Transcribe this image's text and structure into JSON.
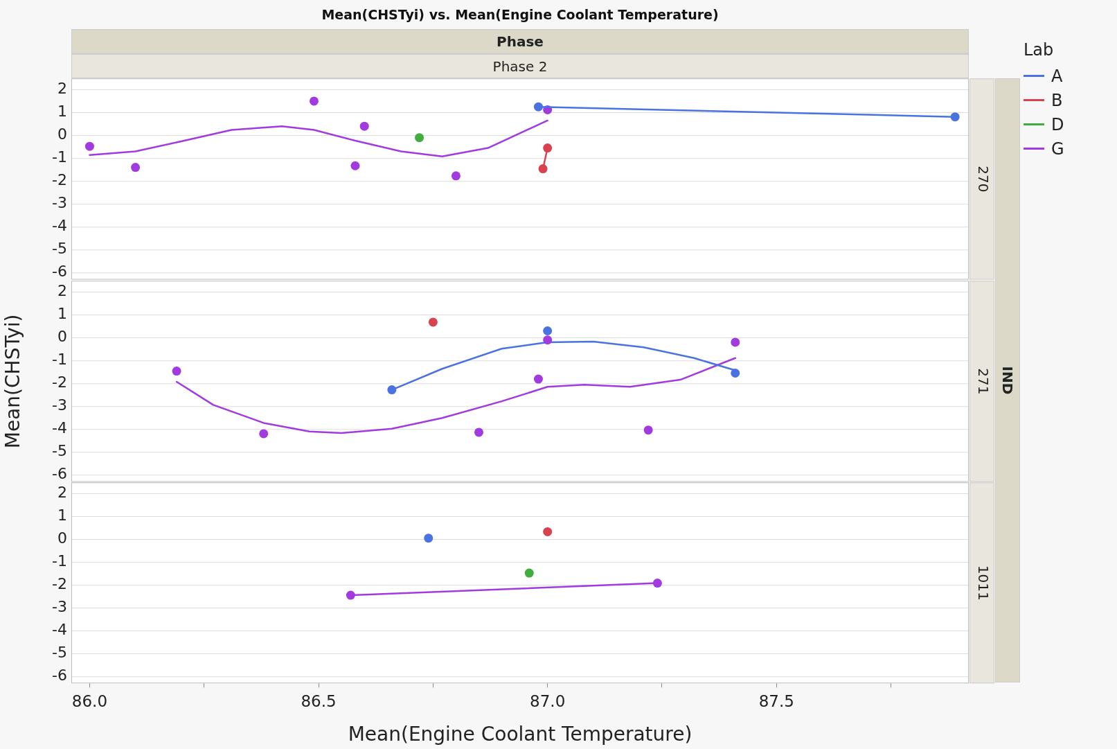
{
  "chart_data": [
    {
      "type": "scatter",
      "title": "Mean(CHSTyi) vs. Mean(Engine Coolant Temperature)",
      "subtitle": "270",
      "annotations": [
        "Phase",
        "Phase 2",
        "IND"
      ],
      "legend": "right",
      "legend_title": "Lab",
      "marker": "circle",
      "grid": "y",
      "tick_labels": "y",
      "xlim": [
        85.96,
        87.92
      ],
      "ylim": [
        -6.3,
        2.5
      ],
      "yticks": [
        -6,
        -5,
        -4,
        -3,
        -2,
        -1,
        0,
        1,
        2
      ],
      "series": [
        {
          "name": "A",
          "type": "line",
          "color": "#4a72e0",
          "x": [
            86.98,
            87.89
          ],
          "values": [
            1.26,
            0.82
          ]
        },
        {
          "name": "B",
          "type": "line",
          "color": "#d9434f",
          "x": [
            86.99,
            87.0
          ],
          "values": [
            -1.45,
            -0.54
          ]
        },
        {
          "name": "D",
          "type": "scatter",
          "color": "#3fae3f",
          "x": [
            86.72
          ],
          "values": [
            -0.09
          ]
        },
        {
          "name": "G",
          "type": "scatter",
          "color": "#a13be0",
          "x": [
            86.0,
            86.1,
            86.49,
            86.6,
            86.58,
            86.8,
            87.0
          ],
          "values": [
            -0.47,
            -1.39,
            1.51,
            0.41,
            -1.32,
            -1.76,
            1.13
          ]
        },
        {
          "type": "line",
          "marker": "none",
          "color": "#a13be0",
          "x": [
            86.0,
            86.1,
            86.2,
            86.31,
            86.42,
            86.49,
            86.58,
            86.68,
            86.77,
            86.87,
            87.0
          ],
          "values": [
            -0.85,
            -0.69,
            -0.25,
            0.25,
            0.41,
            0.25,
            -0.22,
            -0.69,
            -0.91,
            -0.54,
            0.66
          ]
        }
      ]
    },
    {
      "type": "scatter",
      "subtitle": "271",
      "ylabel": "Mean(CHSTyi)",
      "marker": "circle",
      "grid": "y",
      "tick_labels": "y",
      "xlim": [
        85.96,
        87.92
      ],
      "ylim": [
        -6.3,
        2.5
      ],
      "yticks": [
        -6,
        -5,
        -4,
        -3,
        -2,
        -1,
        0,
        1,
        2
      ],
      "series": [
        {
          "type": "scatter",
          "color": "#4a72e0",
          "x": [
            86.66,
            87.0,
            87.41
          ],
          "values": [
            -2.27,
            0.31,
            -1.54
          ]
        },
        {
          "type": "line",
          "marker": "none",
          "color": "#4a72e0",
          "x": [
            86.66,
            86.77,
            86.9,
            87.0,
            87.1,
            87.21,
            87.32,
            87.41
          ],
          "values": [
            -2.27,
            -1.35,
            -0.47,
            -0.19,
            -0.16,
            -0.41,
            -0.88,
            -1.42
          ]
        },
        {
          "type": "scatter",
          "color": "#d9434f",
          "x": [
            86.75
          ],
          "values": [
            0.69
          ]
        },
        {
          "type": "scatter",
          "color": "#a13be0",
          "x": [
            86.19,
            86.38,
            86.85,
            86.98,
            87.0,
            87.22,
            87.41
          ],
          "values": [
            -1.45,
            -4.19,
            -4.13,
            -1.8,
            -0.09,
            -4.03,
            -0.19
          ]
        },
        {
          "type": "line",
          "marker": "none",
          "color": "#a13be0",
          "x": [
            86.19,
            86.27,
            86.38,
            86.48,
            86.55,
            86.66,
            86.77,
            86.9,
            87.0,
            87.08,
            87.18,
            87.29,
            87.41
          ],
          "values": [
            -1.92,
            -2.93,
            -3.72,
            -4.09,
            -4.16,
            -3.97,
            -3.5,
            -2.77,
            -2.14,
            -2.05,
            -2.14,
            -1.83,
            -0.88
          ]
        }
      ]
    },
    {
      "type": "scatter",
      "subtitle": "1011",
      "xlabel": "Mean(Engine Coolant Temperature)",
      "marker": "circle",
      "grid": "y",
      "xlim": [
        85.96,
        87.92
      ],
      "ylim": [
        -6.3,
        2.5
      ],
      "yticks": [
        -6,
        -5,
        -4,
        -3,
        -2,
        -1,
        0,
        1,
        2
      ],
      "xticks": [
        {
          "value": 86,
          "label": "86.0"
        },
        {
          "value": 86.25,
          "label": null
        },
        {
          "value": 86.5,
          "label": "86.5"
        },
        {
          "value": 86.75,
          "label": null
        },
        {
          "value": 87,
          "label": "87.0"
        },
        {
          "value": 87.25,
          "label": null
        },
        {
          "value": 87.5,
          "label": "87.5"
        },
        {
          "value": 87.75,
          "label": null
        }
      ],
      "series": [
        {
          "type": "scatter",
          "color": "#4a72e0",
          "x": [
            86.74
          ],
          "values": [
            0.06
          ]
        },
        {
          "type": "scatter",
          "color": "#d9434f",
          "x": [
            87.0
          ],
          "values": [
            0.34
          ]
        },
        {
          "type": "scatter",
          "color": "#3fae3f",
          "x": [
            86.96
          ],
          "values": [
            -1.47
          ]
        },
        {
          "type": "line",
          "color": "#a13be0",
          "x": [
            86.57,
            87.24
          ],
          "values": [
            -2.44,
            -1.91
          ]
        }
      ]
    }
  ]
}
